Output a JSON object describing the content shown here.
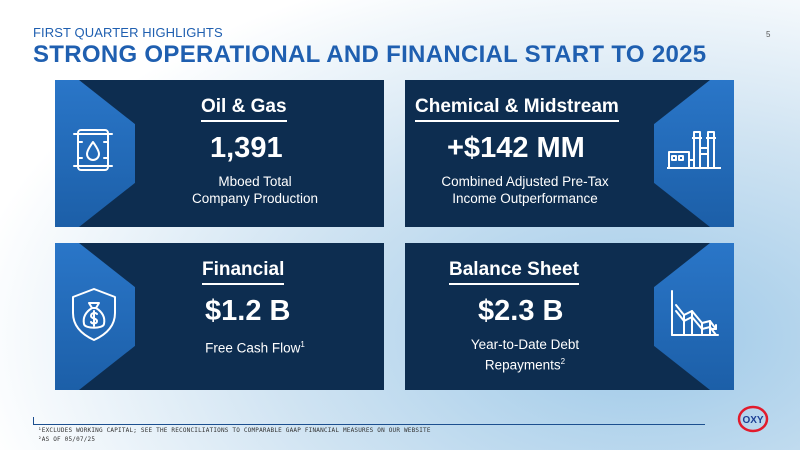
{
  "header": {
    "kicker": "FIRST QUARTER HIGHLIGHTS",
    "title": "STRONG OPERATIONAL AND FINANCIAL START TO 2025",
    "page_number": "5"
  },
  "cards": [
    {
      "heading": "Oil & Gas",
      "value": "1,391",
      "subtitle_line1": "Mboed Total",
      "subtitle_line2": "Company Production",
      "icon": "oil-barrel-icon"
    },
    {
      "heading": "Chemical & Midstream",
      "value": "+$142 MM",
      "subtitle_line1": "Combined Adjusted Pre-Tax",
      "subtitle_line2": "Income Outperformance",
      "icon": "chemical-plant-icon"
    },
    {
      "heading": "Financial",
      "value": "$1.2 B",
      "subtitle_line1": "Free Cash Flow",
      "subtitle_sup": "1",
      "icon": "money-bag-shield-icon"
    },
    {
      "heading": "Balance Sheet",
      "value": "$2.3 B",
      "subtitle_line1": "Year-to-Date Debt",
      "subtitle_line2": "Repayments",
      "subtitle_sup": "2",
      "icon": "declining-chart-icon"
    }
  ],
  "footnotes": {
    "note1": "¹EXCLUDES WORKING CAPITAL; SEE THE RECONCILIATIONS TO COMPARABLE GAAP FINANCIAL MEASURES ON OUR WEBSITE",
    "note2": "²AS OF 05/07/25"
  },
  "logo": {
    "text": "OXY",
    "colors": {
      "ring": "#e21b2c",
      "text": "#1c3f94"
    }
  },
  "colors": {
    "title": "#1f5fb0",
    "card_background": "#0d2d50",
    "card_wedge": "#2a76c8"
  }
}
